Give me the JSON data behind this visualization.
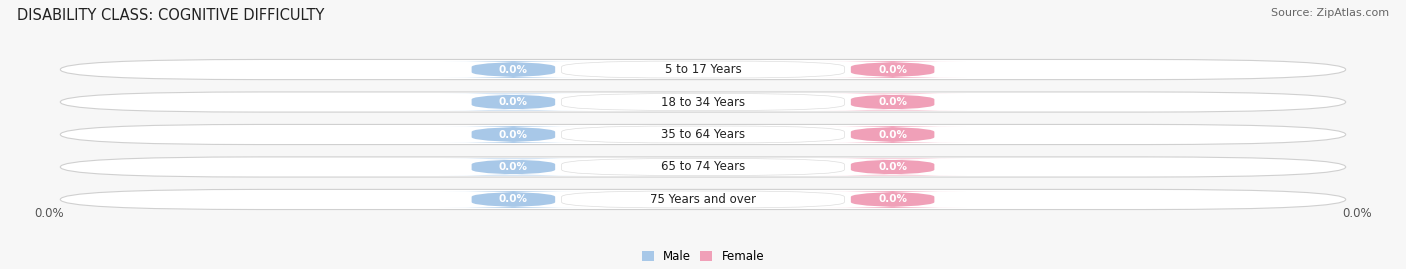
{
  "title": "DISABILITY CLASS: COGNITIVE DIFFICULTY",
  "source": "Source: ZipAtlas.com",
  "categories": [
    "5 to 17 Years",
    "18 to 34 Years",
    "35 to 64 Years",
    "65 to 74 Years",
    "75 Years and over"
  ],
  "male_values": [
    0.0,
    0.0,
    0.0,
    0.0,
    0.0
  ],
  "female_values": [
    0.0,
    0.0,
    0.0,
    0.0,
    0.0
  ],
  "male_color": "#a8c8e8",
  "female_color": "#f0a0b8",
  "bar_bg_color": "#f0f0f0",
  "bar_border_color": "#d0d0d0",
  "background_color": "#f7f7f7",
  "title_fontsize": 10.5,
  "source_fontsize": 8,
  "label_fontsize": 8.5,
  "tick_fontsize": 8.5,
  "value_fontsize": 7.5,
  "category_fontsize": 8.5
}
